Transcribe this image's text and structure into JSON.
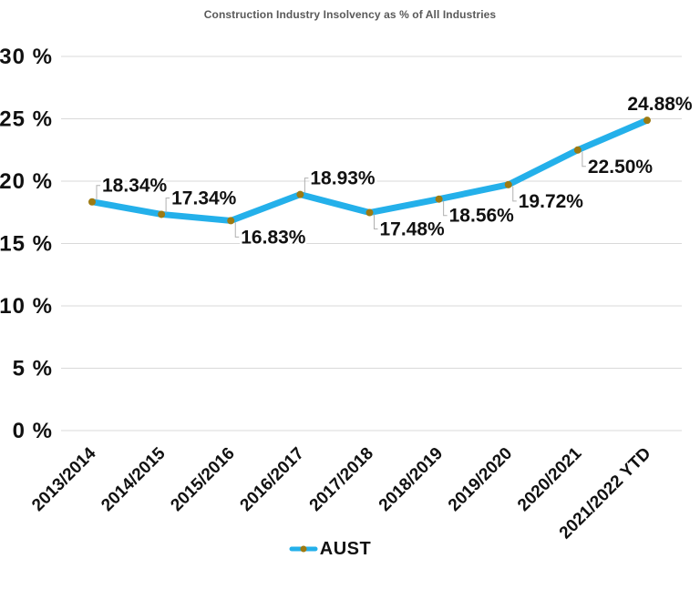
{
  "chart_data": {
    "type": "line",
    "title": "Construction Industry Insolvency as % of All Industries",
    "categories": [
      "2013/2014",
      "2014/2015",
      "2015/2016",
      "2016/2017",
      "2017/2018",
      "2018/2019",
      "2019/2020",
      "2020/2021",
      "2021/2022 YTD"
    ],
    "series": [
      {
        "name": "AUST",
        "values": [
          18.34,
          17.34,
          16.83,
          18.93,
          17.48,
          18.56,
          19.72,
          22.5,
          24.88
        ]
      }
    ],
    "data_labels": [
      {
        "text": "18.34%",
        "position": "above"
      },
      {
        "text": "17.34%",
        "position": "above"
      },
      {
        "text": "16.83%",
        "position": "below"
      },
      {
        "text": "18.93%",
        "position": "above"
      },
      {
        "text": "17.48%",
        "position": "below"
      },
      {
        "text": "18.56%",
        "position": "below"
      },
      {
        "text": "19.72%",
        "position": "below"
      },
      {
        "text": "22.50%",
        "position": "below"
      },
      {
        "text": "24.88%",
        "position": "above-center"
      }
    ],
    "y_ticks": [
      {
        "value": 30,
        "label": "30 %"
      },
      {
        "value": 25,
        "label": "25 %"
      },
      {
        "value": 20,
        "label": "20 %"
      },
      {
        "value": 15,
        "label": "15 %"
      },
      {
        "value": 10,
        "label": "10 %"
      },
      {
        "value": 5,
        "label": "5 %"
      },
      {
        "value": 0,
        "label": "0 %"
      }
    ],
    "ylim": [
      0,
      30
    ],
    "xlabel": "",
    "ylabel": "",
    "grid": "horizontal",
    "legend_position": "bottom",
    "colors": {
      "line": "#24b0ea",
      "marker": "#9d7a12",
      "grid": "#d9d9d9",
      "leader": "#b0b0b0",
      "tick_text": "#111111",
      "title_text": "#595959",
      "background": "#ffffff"
    }
  }
}
